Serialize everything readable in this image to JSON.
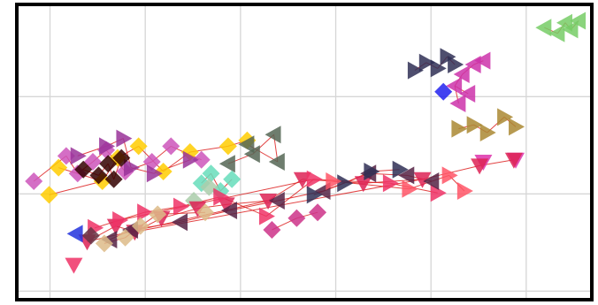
{
  "chart_data": {
    "type": "scatter",
    "title": "",
    "xlabel": "",
    "ylabel": "",
    "grid": true,
    "legend": "none",
    "xlim": [
      0,
      6
    ],
    "ylim": [
      0,
      3
    ],
    "gridlines_x": [
      0.33,
      1.33,
      2.33,
      3.33,
      4.33,
      5.33
    ],
    "gridlines_y": [
      0.07,
      1.07,
      2.07
    ],
    "segment_color": "#dd2222",
    "series": [
      {
        "color": "#77cc66",
        "marker": "tri-left",
        "points": [
          [
            5.52,
            2.78
          ],
          [
            5.66,
            2.72
          ],
          [
            5.74,
            2.83
          ],
          [
            5.8,
            2.76
          ],
          [
            5.88,
            2.85
          ]
        ],
        "links": [
          [
            0,
            1
          ],
          [
            1,
            2
          ],
          [
            2,
            3
          ],
          [
            3,
            4
          ]
        ]
      },
      {
        "color": "#2f2f55",
        "marker": "tri-right",
        "points": [
          [
            4.16,
            2.34
          ],
          [
            4.28,
            2.42
          ],
          [
            4.4,
            2.36
          ],
          [
            4.5,
            2.48
          ],
          [
            4.58,
            2.4
          ]
        ],
        "links": [
          [
            0,
            1
          ],
          [
            1,
            2
          ],
          [
            2,
            3
          ],
          [
            3,
            4
          ]
        ]
      },
      {
        "color": "#cc33aa",
        "marker": "tri-left",
        "points": [
          [
            4.58,
            2.18
          ],
          [
            4.66,
            2.3
          ],
          [
            4.72,
            2.1
          ],
          [
            4.62,
            2.0
          ],
          [
            4.78,
            2.4
          ],
          [
            4.88,
            2.44
          ]
        ],
        "links": [
          [
            0,
            1
          ],
          [
            0,
            2
          ],
          [
            0,
            3
          ],
          [
            1,
            4
          ],
          [
            4,
            5
          ]
        ]
      },
      {
        "color": "#2222ee",
        "marker": "diamond",
        "points": [
          [
            4.46,
            2.12
          ]
        ],
        "links": []
      },
      {
        "color": "#aa8833",
        "marker": "tri-right",
        "points": [
          [
            4.62,
            1.74
          ],
          [
            4.78,
            1.78
          ],
          [
            4.92,
            1.7
          ],
          [
            5.1,
            1.86
          ],
          [
            5.22,
            1.76
          ]
        ],
        "links": [
          [
            0,
            1
          ],
          [
            1,
            2
          ],
          [
            2,
            3
          ],
          [
            3,
            4
          ]
        ]
      },
      {
        "color": "#dd33aa",
        "marker": "tri-down",
        "points": [
          [
            4.88,
            1.4
          ],
          [
            5.22,
            1.42
          ]
        ],
        "links": []
      },
      {
        "color": "#cc55bb",
        "marker": "diamond",
        "points": [
          [
            0.16,
            1.2
          ],
          [
            0.5,
            1.46
          ],
          [
            0.62,
            1.28
          ],
          [
            0.78,
            1.4
          ],
          [
            0.92,
            1.52
          ],
          [
            1.12,
            1.3
          ],
          [
            1.4,
            1.4
          ],
          [
            1.6,
            1.56
          ],
          [
            1.92,
            1.42
          ]
        ],
        "links": [
          [
            0,
            1
          ],
          [
            1,
            2
          ],
          [
            2,
            3
          ],
          [
            3,
            4
          ],
          [
            4,
            5
          ],
          [
            5,
            6
          ],
          [
            6,
            7
          ],
          [
            7,
            8
          ]
        ]
      },
      {
        "color": "#ffcc00",
        "marker": "diamond",
        "points": [
          [
            0.32,
            1.06
          ],
          [
            0.42,
            1.34
          ],
          [
            0.88,
            1.2
          ],
          [
            1.04,
            1.44
          ],
          [
            1.26,
            1.56
          ],
          [
            1.52,
            1.3
          ],
          [
            1.8,
            1.5
          ],
          [
            2.2,
            1.56
          ],
          [
            2.4,
            1.62
          ]
        ],
        "links": [
          [
            0,
            2
          ],
          [
            1,
            2
          ],
          [
            2,
            3
          ],
          [
            3,
            4
          ],
          [
            4,
            5
          ],
          [
            5,
            6
          ],
          [
            6,
            7
          ],
          [
            7,
            8
          ]
        ]
      },
      {
        "color": "#993399",
        "marker": "tri-right",
        "points": [
          [
            0.62,
            1.46
          ],
          [
            0.92,
            1.56
          ],
          [
            1.1,
            1.64
          ],
          [
            1.18,
            1.34
          ],
          [
            1.42,
            1.28
          ],
          [
            1.8,
            1.42
          ]
        ],
        "links": [
          [
            0,
            1
          ],
          [
            1,
            2
          ],
          [
            2,
            3
          ],
          [
            3,
            4
          ],
          [
            4,
            5
          ]
        ]
      },
      {
        "color": "#330000",
        "marker": "diamond",
        "points": [
          [
            0.68,
            1.32
          ],
          [
            0.84,
            1.26
          ],
          [
            0.94,
            1.38
          ],
          [
            1.0,
            1.22
          ],
          [
            1.08,
            1.44
          ]
        ],
        "links": [
          [
            0,
            1
          ],
          [
            1,
            2
          ],
          [
            2,
            3
          ],
          [
            3,
            4
          ]
        ]
      },
      {
        "color": "#556655",
        "marker": "tri-left",
        "points": [
          [
            2.2,
            1.38
          ],
          [
            2.46,
            1.48
          ],
          [
            2.68,
            1.68
          ],
          [
            2.72,
            1.4
          ],
          [
            2.4,
            1.58
          ]
        ],
        "links": [
          [
            0,
            1
          ],
          [
            1,
            2
          ],
          [
            2,
            3
          ],
          [
            3,
            4
          ]
        ]
      },
      {
        "color": "#66ddbb",
        "marker": "diamond",
        "points": [
          [
            1.92,
            1.18
          ],
          [
            2.02,
            1.28
          ],
          [
            2.12,
            1.1
          ],
          [
            2.24,
            1.22
          ]
        ],
        "links": [
          [
            0,
            1
          ],
          [
            1,
            2
          ],
          [
            2,
            3
          ]
        ]
      },
      {
        "color": "#aaccaa",
        "marker": "diamond",
        "points": [
          [
            1.84,
            1.0
          ],
          [
            2.0,
            1.14
          ]
        ],
        "links": []
      },
      {
        "color": "#dd2255",
        "marker": "tri-down",
        "points": [
          [
            0.72,
            0.58
          ],
          [
            1.02,
            0.74
          ],
          [
            1.22,
            0.68
          ],
          [
            1.5,
            0.82
          ],
          [
            1.88,
            0.92
          ],
          [
            2.18,
            0.96
          ],
          [
            2.62,
            1.0
          ],
          [
            2.98,
            1.22
          ],
          [
            3.62,
            1.18
          ],
          [
            4.24,
            1.22
          ],
          [
            4.84,
            1.36
          ],
          [
            5.2,
            1.42
          ]
        ],
        "links": [
          [
            0,
            1
          ],
          [
            1,
            2
          ],
          [
            2,
            3
          ],
          [
            3,
            4
          ],
          [
            4,
            5
          ],
          [
            5,
            6
          ],
          [
            6,
            7
          ],
          [
            7,
            8
          ],
          [
            8,
            9
          ],
          [
            9,
            10
          ],
          [
            10,
            11
          ],
          [
            0,
            6
          ],
          [
            2,
            9
          ]
        ]
      },
      {
        "color": "#ee3366",
        "marker": "tri-right",
        "points": [
          [
            0.8,
            0.72
          ],
          [
            1.06,
            0.8
          ],
          [
            1.32,
            0.88
          ],
          [
            1.7,
            0.94
          ],
          [
            2.12,
            1.04
          ],
          [
            2.6,
            0.84
          ],
          [
            3.1,
            1.22
          ],
          [
            3.9,
            1.18
          ],
          [
            4.4,
            1.08
          ]
        ],
        "links": [
          [
            0,
            1
          ],
          [
            1,
            2
          ],
          [
            2,
            3
          ],
          [
            3,
            4
          ],
          [
            4,
            5
          ],
          [
            5,
            6
          ],
          [
            6,
            7
          ],
          [
            7,
            8
          ],
          [
            1,
            6
          ]
        ]
      },
      {
        "color": "#552244",
        "marker": "tri-left",
        "points": [
          [
            0.96,
            0.6
          ],
          [
            1.18,
            0.7
          ],
          [
            1.7,
            0.78
          ],
          [
            2.22,
            0.9
          ],
          [
            2.72,
            1.0
          ],
          [
            3.2,
            1.1
          ],
          [
            3.68,
            1.28
          ],
          [
            4.08,
            1.26
          ],
          [
            4.34,
            1.2
          ]
        ],
        "links": [
          [
            0,
            1
          ],
          [
            1,
            2
          ],
          [
            2,
            3
          ],
          [
            3,
            4
          ],
          [
            4,
            5
          ],
          [
            5,
            6
          ],
          [
            6,
            7
          ],
          [
            7,
            8
          ]
        ]
      },
      {
        "color": "#ddbb88",
        "marker": "diamond",
        "points": [
          [
            0.9,
            0.56
          ],
          [
            1.12,
            0.62
          ],
          [
            1.28,
            0.74
          ],
          [
            1.46,
            0.86
          ],
          [
            1.96,
            0.88
          ]
        ],
        "links": [
          [
            0,
            1
          ],
          [
            1,
            2
          ],
          [
            2,
            3
          ],
          [
            3,
            4
          ]
        ]
      },
      {
        "color": "#2f2f55",
        "marker": "tri-right",
        "points": [
          [
            3.1,
            1.06
          ],
          [
            3.42,
            1.18
          ],
          [
            3.7,
            1.3
          ],
          [
            4.0,
            1.32
          ]
        ],
        "links": [
          [
            0,
            1
          ],
          [
            1,
            2
          ],
          [
            2,
            3
          ]
        ]
      },
      {
        "color": "#cc3388",
        "marker": "diamond",
        "points": [
          [
            2.66,
            0.7
          ],
          [
            2.92,
            0.82
          ],
          [
            3.14,
            0.88
          ]
        ],
        "links": [
          [
            0,
            1
          ],
          [
            1,
            2
          ]
        ]
      },
      {
        "color": "#2233dd",
        "marker": "tri-left",
        "points": [
          [
            0.6,
            0.66
          ]
        ],
        "links": []
      },
      {
        "color": "#663344",
        "marker": "diamond",
        "points": [
          [
            0.76,
            0.64
          ]
        ],
        "links": []
      },
      {
        "color": "#ee3366",
        "marker": "tri-down",
        "points": [
          [
            0.58,
            0.34
          ]
        ],
        "links": []
      },
      {
        "color": "#ff5566",
        "marker": "tri-right",
        "points": [
          [
            3.3,
            1.2
          ],
          [
            4.1,
            1.12
          ],
          [
            4.52,
            1.26
          ],
          [
            4.68,
            1.1
          ]
        ],
        "links": [
          [
            0,
            1
          ],
          [
            1,
            2
          ],
          [
            2,
            3
          ]
        ]
      }
    ]
  }
}
